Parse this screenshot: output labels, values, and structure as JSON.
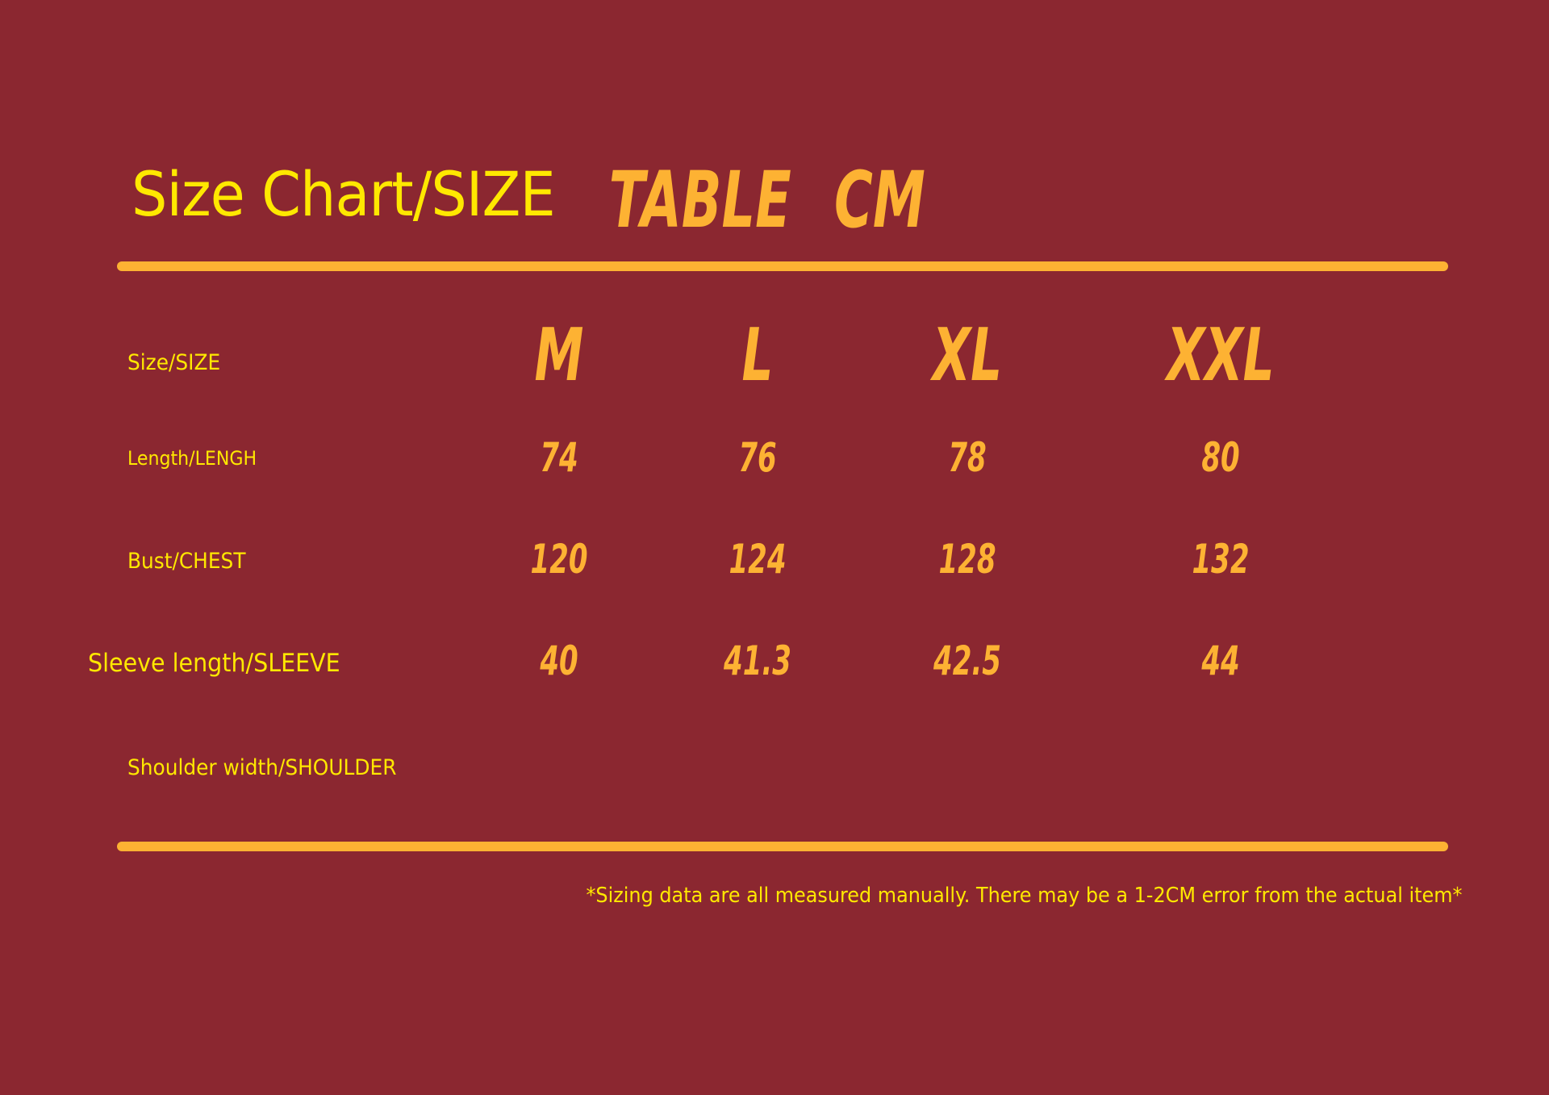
{
  "title": {
    "prefix": "Size Chart/SIZE",
    "word": "TABLE",
    "unit": "CM"
  },
  "colors": {
    "background": "#8b2730",
    "label_yellow": "#ffe800",
    "accent_orange": "#fdb233"
  },
  "table": {
    "row_labels": [
      "Size/SIZE",
      "Length/LENGH",
      "Bust/CHEST",
      "Sleeve length/SLEEVE",
      "Shoulder width/SHOULDER"
    ],
    "sizes": [
      "M",
      "L",
      "XL",
      "XXL"
    ],
    "length": [
      "74",
      "76",
      "78",
      "80"
    ],
    "chest": [
      "120",
      "124",
      "128",
      "132"
    ],
    "sleeve": [
      "40",
      "41.3",
      "42.5",
      "44"
    ]
  },
  "footnote": "*Sizing data are all measured manually. There may be a 1-2CM error from the actual item*"
}
